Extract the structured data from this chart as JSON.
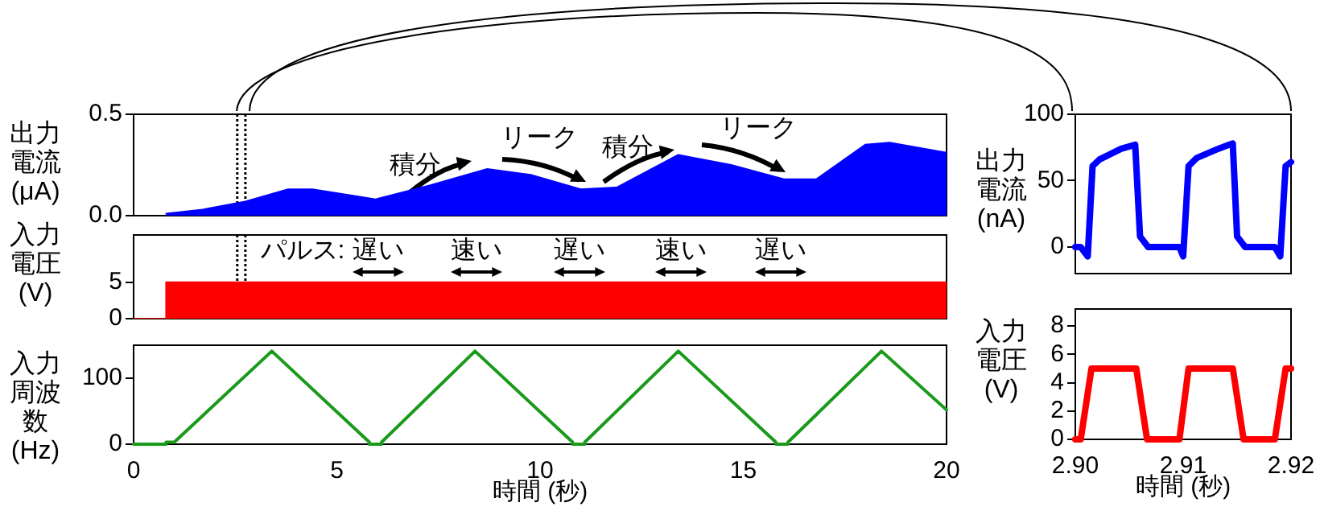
{
  "chart_data": [
    {
      "type": "area",
      "ylabel": "出力電流(μA)",
      "xlim": [
        0,
        20
      ],
      "ylim": [
        0,
        0.5
      ],
      "yticks": [
        {
          "value": 0,
          "label": "0.0"
        },
        0.5
      ],
      "tick_labels": "y",
      "series": [
        {
          "color": "#0000ff",
          "x": [
            0.8,
            1.7,
            2.75,
            3.8,
            4.4,
            5.65,
            5.95,
            7.3,
            8.7,
            9.8,
            11,
            11.9,
            13.4,
            14.7,
            16,
            16.8,
            18,
            18.6,
            20
          ],
          "values": [
            0.01,
            0.03,
            0.07,
            0.13,
            0.13,
            0.09,
            0.08,
            0.15,
            0.23,
            0.2,
            0.13,
            0.14,
            0.3,
            0.25,
            0.18,
            0.18,
            0.35,
            0.36,
            0.31
          ]
        }
      ],
      "annotations": [
        "積分",
        "リーク",
        "積分",
        "リーク"
      ],
      "ref_lines": [
        {
          "axis": "x",
          "value": 2.55,
          "color": "#000000",
          "line_style": "dotted"
        },
        {
          "axis": "x",
          "value": 2.75,
          "color": "#000000",
          "line_style": "dotted"
        }
      ]
    },
    {
      "type": "area",
      "ylabel": "入力電圧(V)",
      "xlim": [
        0,
        20
      ],
      "ylim": [
        0,
        11.5
      ],
      "yticks": [
        0,
        5
      ],
      "tick_labels": "y",
      "series": [
        {
          "color": "#ff0000",
          "x": [
            0,
            0.8,
            0.8,
            20
          ],
          "values": [
            0,
            0,
            5,
            5
          ]
        }
      ],
      "annotations": [
        "パルス:",
        "遅い",
        "速い",
        "遅い",
        "速い",
        "遅い"
      ],
      "ref_lines": [
        {
          "axis": "x",
          "value": 2.55,
          "color": "#000000",
          "line_style": "dotted"
        },
        {
          "axis": "x",
          "value": 2.75,
          "color": "#000000",
          "line_style": "dotted"
        }
      ]
    },
    {
      "type": "line",
      "ylabel": "入力周波数(Hz)",
      "xlabel": "時間 (秒)",
      "xlim": [
        0,
        20
      ],
      "ylim": [
        0,
        150
      ],
      "xticks": [
        0,
        5,
        10,
        15,
        20
      ],
      "yticks": [
        0,
        100
      ],
      "series": [
        {
          "color": "#1a9a1a",
          "x": [
            0,
            0.8,
            0.8,
            1.0,
            3.4,
            5.8,
            5.8,
            6.1,
            6.1,
            8.4,
            10.8,
            10.8,
            11.1,
            11.1,
            13.4,
            15.8,
            15.8,
            16.1,
            16.1,
            18.4,
            20
          ],
          "values": [
            0,
            0,
            3,
            3,
            141,
            3,
            0,
            0,
            3,
            141,
            3,
            0,
            0,
            3,
            141,
            3,
            0,
            0,
            3,
            141,
            52
          ]
        }
      ]
    },
    {
      "type": "line",
      "ylabel": "出力電流(nA)",
      "xlim": [
        2.9,
        2.92
      ],
      "ylim": [
        -20,
        100
      ],
      "yticks": [
        0,
        50,
        100
      ],
      "tick_labels": "y",
      "series": [
        {
          "color": "#0000ff",
          "x": [
            2.9,
            2.9005,
            2.90115,
            2.9016,
            2.90225,
            2.90425,
            2.90555,
            2.906,
            2.90675,
            2.90965,
            2.91,
            2.9105,
            2.91125,
            2.91325,
            2.9146,
            2.915,
            2.91575,
            2.9185,
            2.919,
            2.9195,
            2.92
          ],
          "values": [
            0,
            0,
            -7,
            61,
            66,
            74,
            77,
            8,
            0,
            0,
            -7,
            61,
            67,
            74,
            78,
            8,
            0,
            0,
            -7,
            61,
            64
          ]
        }
      ]
    },
    {
      "type": "line",
      "ylabel": "入力電圧(V)",
      "xlabel": "時間 (秒)",
      "xlim": [
        2.9,
        2.92
      ],
      "ylim": [
        0,
        9.2
      ],
      "xticks": [
        {
          "value": 2.9,
          "label": "2.90"
        },
        2.91,
        {
          "value": 2.92,
          "label": "2.92"
        }
      ],
      "yticks": [
        0,
        2,
        4,
        6,
        8
      ],
      "series": [
        {
          "color": "#ff0000",
          "x": [
            2.9,
            2.9005,
            2.9015,
            2.90565,
            2.90665,
            2.90965,
            2.9105,
            2.9146,
            2.9156,
            2.9185,
            2.9195,
            2.92
          ],
          "values": [
            0,
            0,
            5,
            5,
            0,
            0,
            5,
            5,
            0,
            0,
            5,
            5
          ]
        }
      ]
    }
  ]
}
